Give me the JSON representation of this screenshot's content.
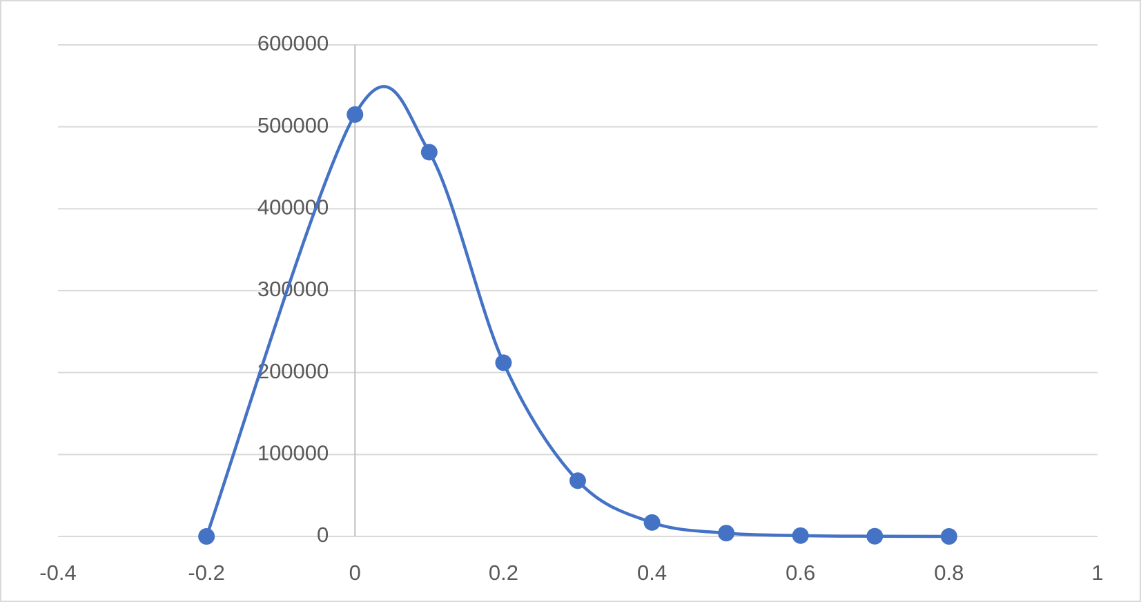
{
  "chart_data": {
    "type": "scatter_smooth",
    "x": [
      -0.2,
      0,
      0.1,
      0.2,
      0.3,
      0.4,
      0.5,
      0.6,
      0.7,
      0.8
    ],
    "series": [
      {
        "color": "#4472c4",
        "values": [
          0,
          515000,
          469000,
          212000,
          68000,
          17000,
          4000,
          1000,
          200,
          0
        ]
      }
    ],
    "xlim": [
      -0.4,
      1
    ],
    "xticks": [
      -0.4,
      -0.2,
      0,
      0.2,
      0.4,
      0.6,
      0.8,
      1
    ],
    "ylim": [
      0,
      600000
    ],
    "yticks": [
      0,
      100000,
      200000,
      300000,
      400000,
      500000,
      600000
    ],
    "grid": true
  }
}
